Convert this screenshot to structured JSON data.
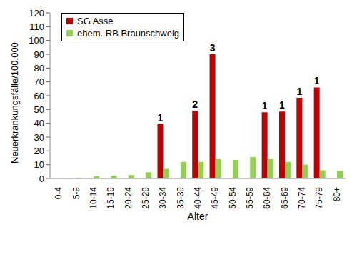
{
  "chart_data": {
    "type": "bar",
    "x_label": "Alter",
    "y_label": "Neuerkrankungsfälle/100.000",
    "categories": [
      "0-4",
      "5-9",
      "10-14",
      "15-19",
      "20-24",
      "25-29",
      "30-34",
      "35-39",
      "40-44",
      "45-49",
      "50-54",
      "55-59",
      "60-64",
      "65-69",
      "70-74",
      "75-79",
      "80+"
    ],
    "series": [
      {
        "name": "SG Asse",
        "color": "#c00000",
        "values": [
          0,
          0,
          0,
          0,
          0,
          0,
          39.5,
          0,
          49,
          90,
          0,
          0,
          48,
          48.5,
          58.5,
          66,
          0
        ],
        "cases": [
          null,
          null,
          null,
          null,
          null,
          null,
          1,
          null,
          2,
          3,
          null,
          null,
          1,
          1,
          1,
          1,
          null
        ]
      },
      {
        "name": "ehem. RB Braunschweig",
        "color": "#92d050",
        "values": [
          0,
          0.5,
          1.5,
          2,
          2.5,
          4.5,
          7,
          12,
          12,
          14,
          13.5,
          15.5,
          14,
          12,
          10,
          6,
          5.5
        ]
      }
    ],
    "ylim": [
      0,
      120
    ],
    "yticks": [
      0,
      10,
      20,
      30,
      40,
      50,
      60,
      70,
      80,
      90,
      100,
      110,
      120
    ],
    "grid": false,
    "legend": "upper left"
  }
}
